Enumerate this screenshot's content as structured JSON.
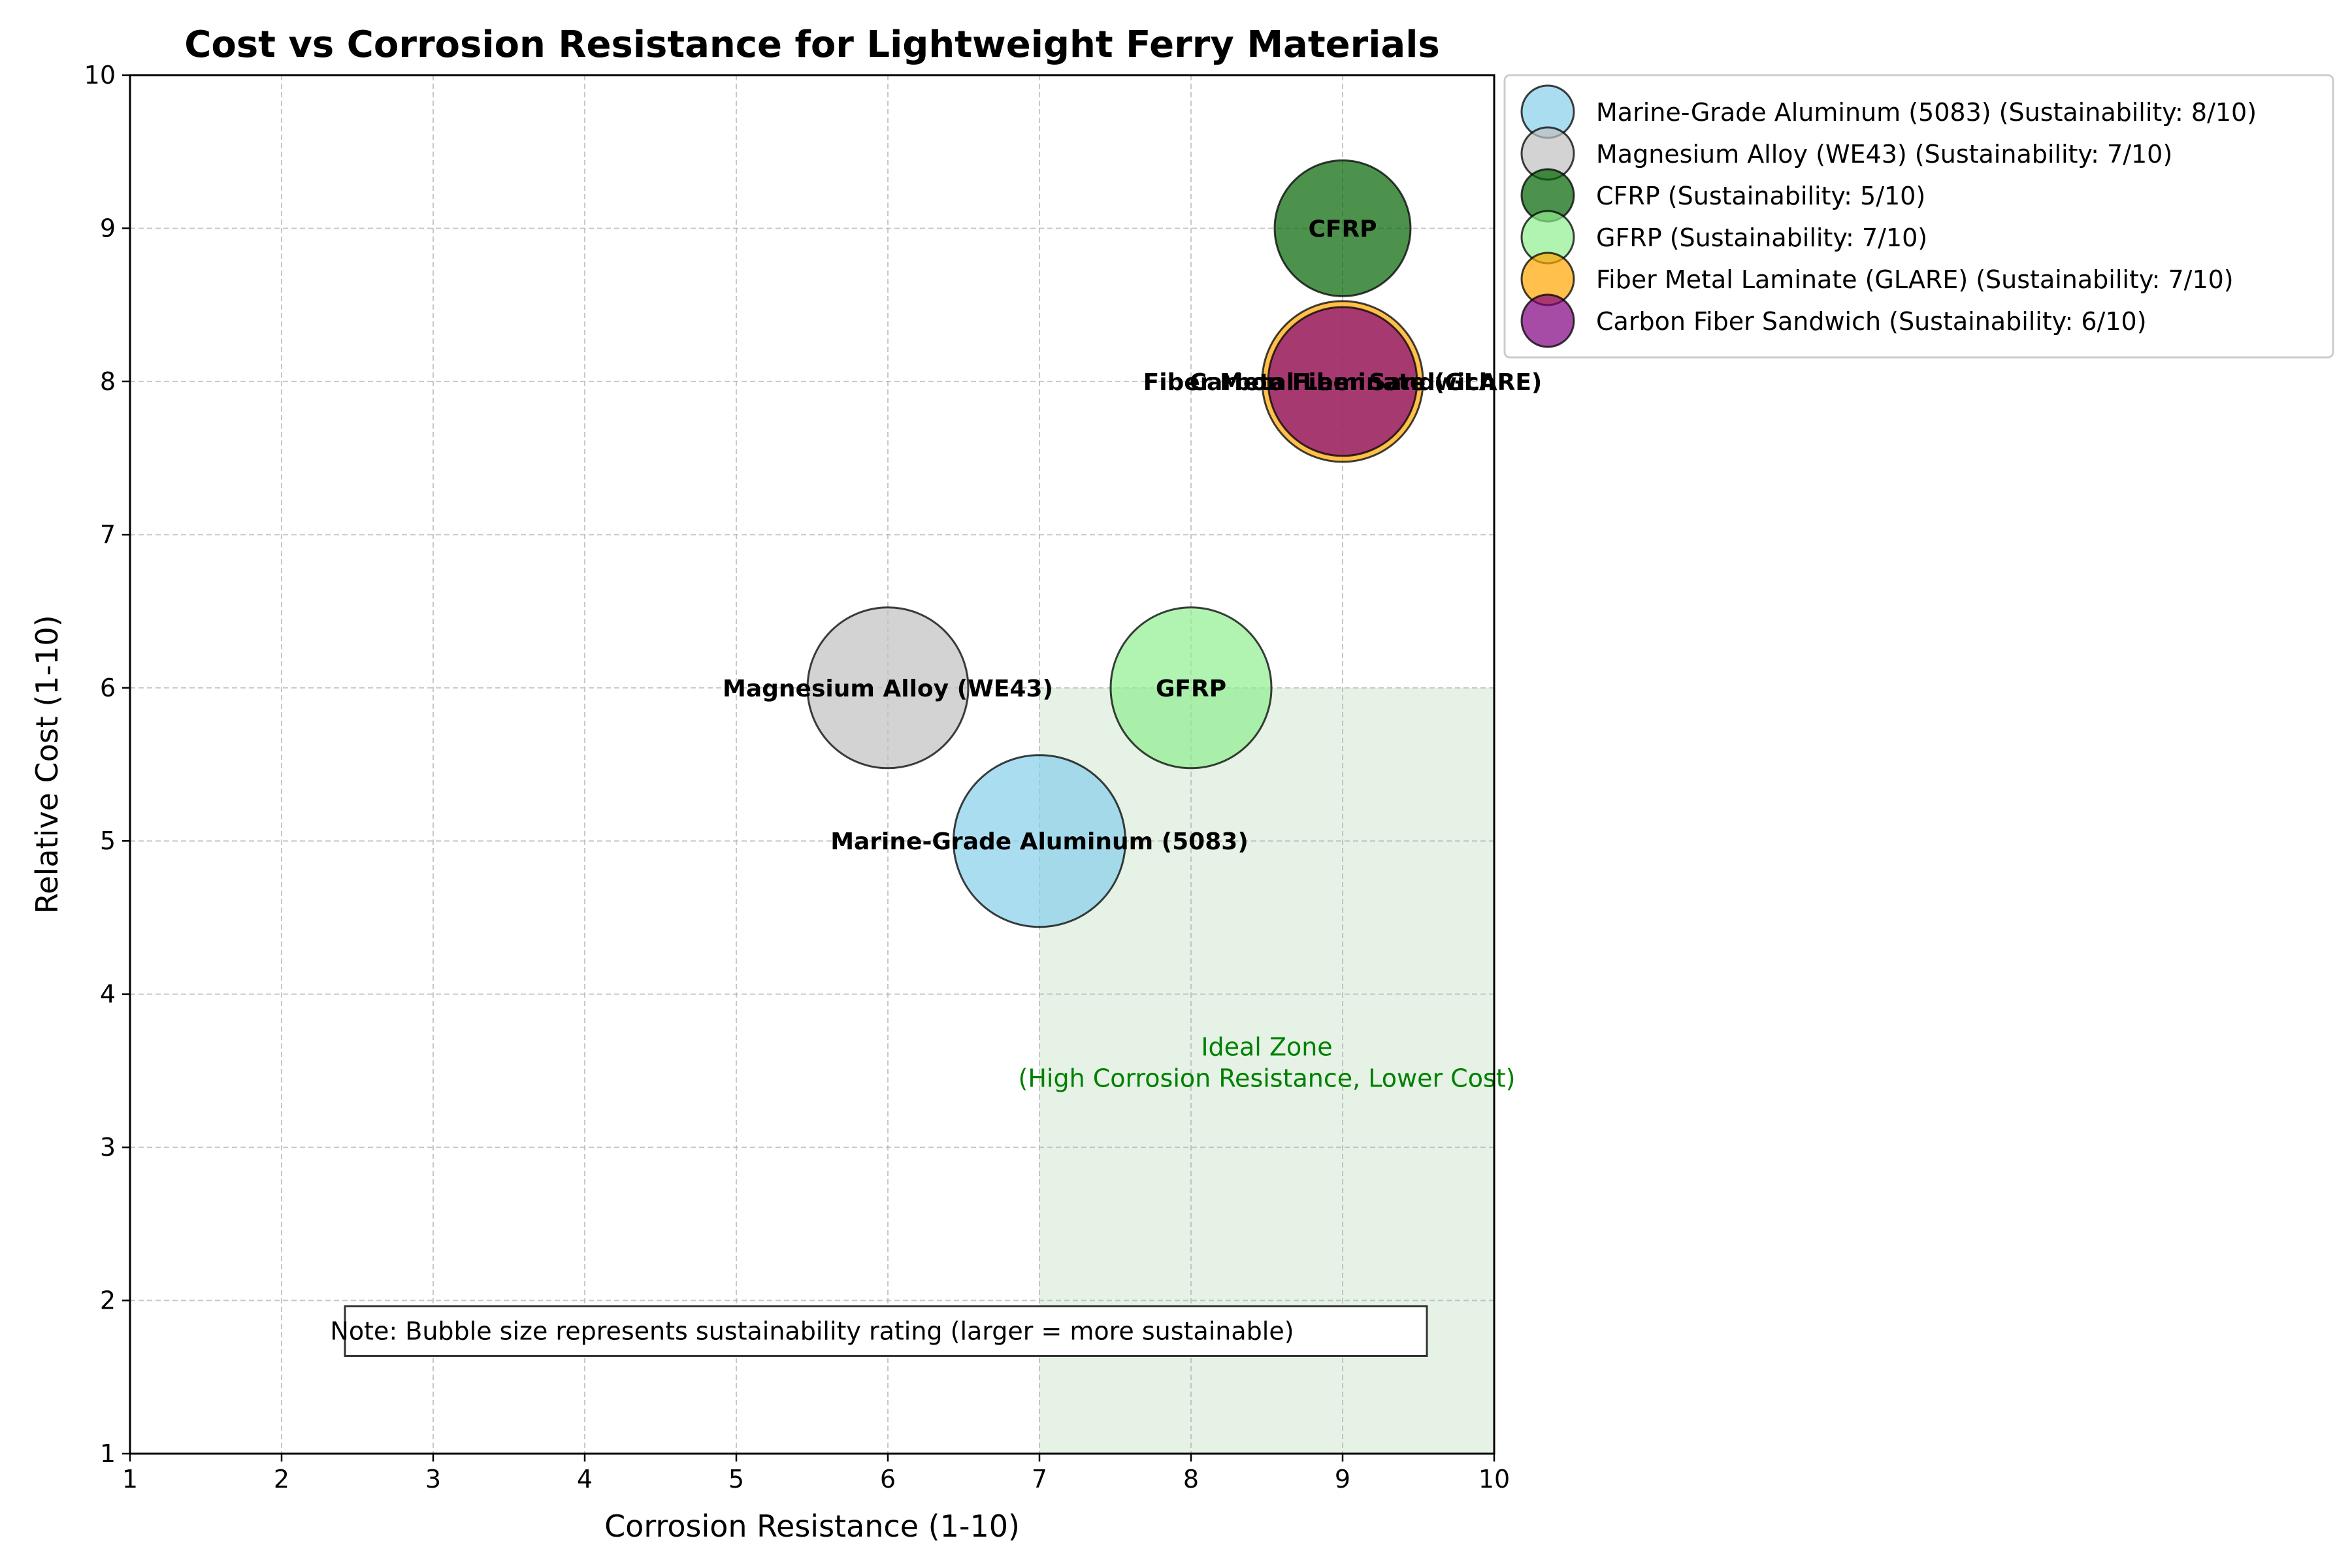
{
  "chart_data": {
    "type": "scatter",
    "title": "Cost vs Corrosion Resistance for Lightweight Ferry Materials",
    "xlabel": "Corrosion Resistance (1-10)",
    "ylabel": "Relative Cost (1-10)",
    "xlim": [
      1,
      10
    ],
    "ylim": [
      1,
      10
    ],
    "xticks": [
      1,
      2,
      3,
      4,
      5,
      6,
      7,
      8,
      9,
      10
    ],
    "yticks": [
      1,
      2,
      3,
      4,
      5,
      6,
      7,
      8,
      9,
      10
    ],
    "grid": true,
    "legend_position": "outside-top-right",
    "series": [
      {
        "name": "Marine-Grade Aluminum (5083) (Sustainability: 8/10)",
        "point_label": "Marine-Grade Aluminum (5083)",
        "x": 7,
        "y": 5,
        "sustainability": 8,
        "color": "#87ceeb"
      },
      {
        "name": "Magnesium Alloy (WE43) (Sustainability: 7/10)",
        "point_label": "Magnesium Alloy (WE43)",
        "x": 6,
        "y": 6,
        "sustainability": 7,
        "color": "#c0c0c0"
      },
      {
        "name": "CFRP (Sustainability: 5/10)",
        "point_label": "CFRP",
        "x": 9,
        "y": 9,
        "sustainability": 5,
        "color": "#006400"
      },
      {
        "name": "GFRP (Sustainability: 7/10)",
        "point_label": "GFRP",
        "x": 8,
        "y": 6,
        "sustainability": 7,
        "color": "#90ee90"
      },
      {
        "name": "Fiber Metal Laminate (GLARE) (Sustainability: 7/10)",
        "point_label": "Fiber Metal Laminate (GLARE)",
        "x": 9,
        "y": 8,
        "sustainability": 7,
        "color": "#ffa500"
      },
      {
        "name": "Carbon Fiber Sandwich (Sustainability: 6/10)",
        "point_label": "Carbon Fiber Sandwich",
        "x": 9,
        "y": 8,
        "sustainability": 6,
        "color": "#800080"
      }
    ],
    "ideal_zone": {
      "x_range": [
        7,
        10
      ],
      "y_range": [
        1,
        6
      ],
      "label": "Ideal Zone\n(High Corrosion Resistance, Lower Cost)",
      "color": "#008000"
    },
    "note": "Note: Bubble size represents sustainability rating (larger = more sustainable)"
  }
}
